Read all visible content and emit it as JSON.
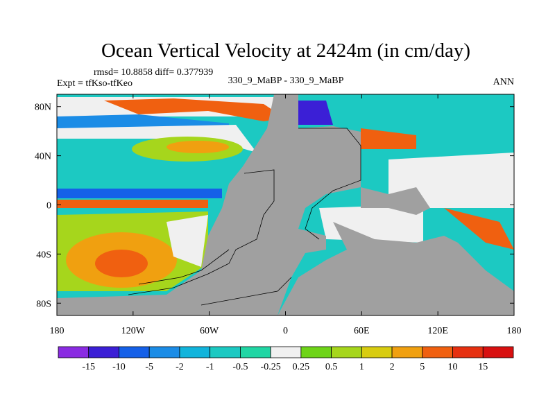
{
  "chart_data": {
    "type": "heatmap",
    "title": "Ocean Vertical Velocity at 2424m (in cm/day)",
    "stats_text": "rmsd= 10.8858 diff= 0.377939",
    "left_label": "Expt = tfKso-tfKeo",
    "center_label": "330_9_MaBP - 330_9_MaBP",
    "right_label": "ANN",
    "x_ticks": [
      {
        "value": -180,
        "label": "180"
      },
      {
        "value": -120,
        "label": "120W"
      },
      {
        "value": -60,
        "label": "60W"
      },
      {
        "value": 0,
        "label": "0"
      },
      {
        "value": 60,
        "label": "60E"
      },
      {
        "value": 120,
        "label": "120E"
      },
      {
        "value": 180,
        "label": "180"
      }
    ],
    "y_ticks": [
      {
        "value": 80,
        "label": "80N"
      },
      {
        "value": 40,
        "label": "40N"
      },
      {
        "value": 0,
        "label": "0"
      },
      {
        "value": -40,
        "label": "40S"
      },
      {
        "value": -80,
        "label": "80S"
      }
    ],
    "xlim": [
      -180,
      180
    ],
    "ylim": [
      -90,
      90
    ],
    "colorbar": {
      "levels": [
        "-15",
        "-10",
        "-5",
        "-2",
        "-1",
        "-0.5",
        "-0.25",
        "0.25",
        "0.5",
        "1",
        "2",
        "5",
        "10",
        "15"
      ],
      "colors": [
        "#8a2be2",
        "#3b1fd6",
        "#1560e8",
        "#1b8ce6",
        "#11b4dc",
        "#1cc9c2",
        "#20d6a4",
        "#f0f0f0",
        "#6ed418",
        "#a6d61c",
        "#d8cc10",
        "#f0a010",
        "#f06010",
        "#e63010",
        "#d81010"
      ]
    },
    "colors": {
      "land": "#a0a0a0",
      "no_data": "#f0f0f0"
    }
  }
}
